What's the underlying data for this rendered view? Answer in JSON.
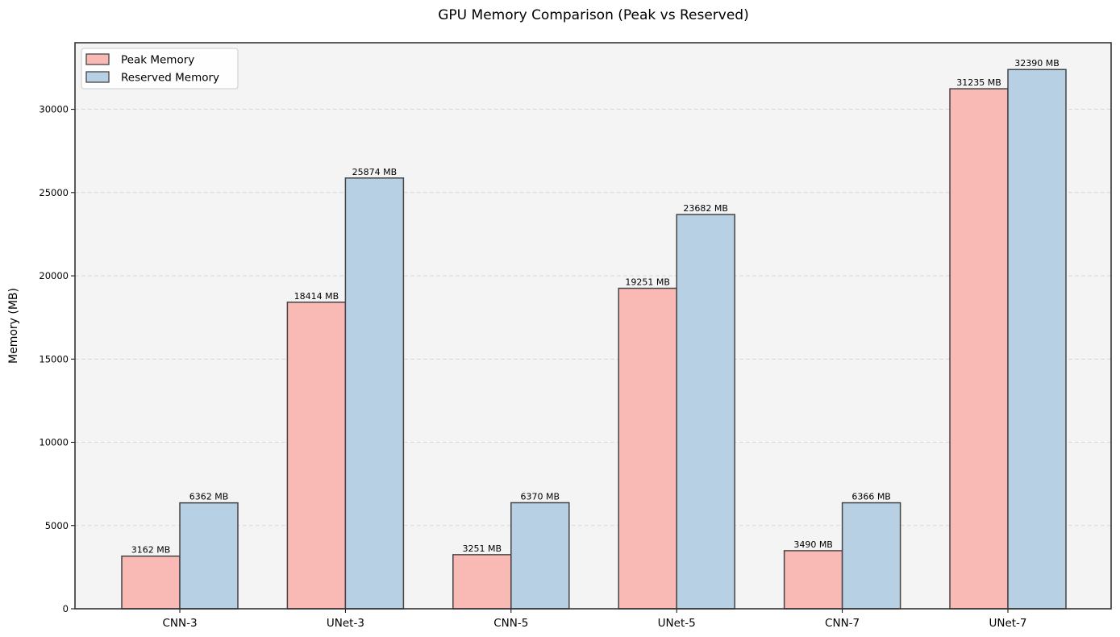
{
  "chart_data": {
    "type": "bar",
    "title": "GPU Memory Comparison (Peak vs Reserved)",
    "xlabel": "",
    "ylabel": "Memory (MB)",
    "categories": [
      "CNN-3",
      "UNet-3",
      "CNN-5",
      "UNet-5",
      "CNN-7",
      "UNet-7"
    ],
    "series": [
      {
        "name": "Peak Memory",
        "color": "#f9b9b5",
        "values": [
          3162,
          18414,
          3251,
          19251,
          3490,
          31235
        ],
        "labels": [
          "3162 MB",
          "18414 MB",
          "3251 MB",
          "19251 MB",
          "3490 MB",
          "31235 MB"
        ]
      },
      {
        "name": "Reserved Memory",
        "color": "#b8d0e4",
        "values": [
          6362,
          25874,
          6370,
          23682,
          6366,
          32390
        ],
        "labels": [
          "6362 MB",
          "25874 MB",
          "6370 MB",
          "23682 MB",
          "6366 MB",
          "32390 MB"
        ]
      }
    ],
    "ylim": [
      0,
      34000
    ],
    "yticks": [
      0,
      5000,
      10000,
      15000,
      20000,
      25000,
      30000
    ],
    "ytick_labels": [
      "0",
      "5000",
      "10000",
      "15000",
      "20000",
      "25000",
      "30000"
    ],
    "grid": "y, dashed",
    "legend_position": "top-left",
    "plot_background": "#f4f4f4",
    "bar_edge_color": "#444444"
  }
}
